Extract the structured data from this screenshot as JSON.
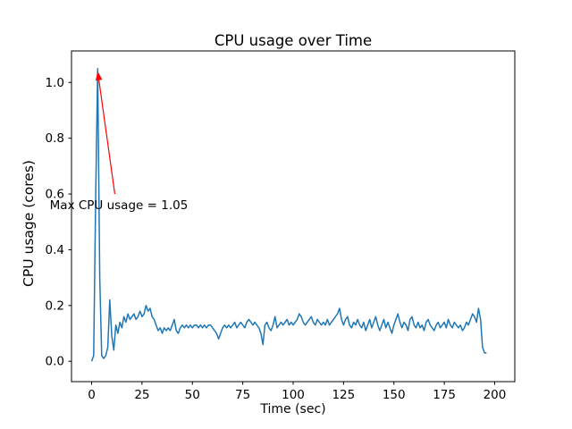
{
  "figure": {
    "background": "#ffffff",
    "title": "CPU usage over Time"
  },
  "chart_data": {
    "type": "line",
    "title": "CPU usage over Time",
    "xlabel": "Time (sec)",
    "ylabel": "CPU usage (cores)",
    "grid": false,
    "legend": null,
    "xlim": [
      -10,
      210
    ],
    "ylim": [
      -0.073,
      1.113
    ],
    "x_ticks": [
      0,
      25,
      50,
      75,
      100,
      125,
      150,
      175,
      200
    ],
    "y_ticks": [
      0.0,
      0.2,
      0.4,
      0.6,
      0.8,
      1.0
    ],
    "line_color": "#1f77b4",
    "line_width": 1.5,
    "series": [
      {
        "name": "CPU usage",
        "x_start": 0,
        "x_step": 1,
        "values": [
          0.0,
          0.02,
          0.6,
          1.05,
          0.3,
          0.02,
          0.01,
          0.02,
          0.05,
          0.22,
          0.09,
          0.04,
          0.13,
          0.1,
          0.14,
          0.12,
          0.16,
          0.14,
          0.17,
          0.15,
          0.16,
          0.17,
          0.15,
          0.16,
          0.18,
          0.16,
          0.17,
          0.2,
          0.18,
          0.19,
          0.16,
          0.15,
          0.13,
          0.11,
          0.12,
          0.1,
          0.12,
          0.11,
          0.12,
          0.11,
          0.13,
          0.15,
          0.11,
          0.1,
          0.12,
          0.13,
          0.12,
          0.13,
          0.12,
          0.13,
          0.12,
          0.13,
          0.13,
          0.12,
          0.13,
          0.12,
          0.13,
          0.12,
          0.13,
          0.13,
          0.12,
          0.11,
          0.1,
          0.08,
          0.1,
          0.12,
          0.13,
          0.12,
          0.13,
          0.12,
          0.13,
          0.14,
          0.12,
          0.13,
          0.14,
          0.13,
          0.12,
          0.14,
          0.15,
          0.14,
          0.13,
          0.14,
          0.13,
          0.12,
          0.1,
          0.06,
          0.13,
          0.14,
          0.12,
          0.11,
          0.13,
          0.16,
          0.12,
          0.13,
          0.14,
          0.13,
          0.14,
          0.15,
          0.13,
          0.14,
          0.13,
          0.14,
          0.15,
          0.17,
          0.16,
          0.14,
          0.13,
          0.14,
          0.15,
          0.16,
          0.14,
          0.13,
          0.15,
          0.14,
          0.13,
          0.14,
          0.13,
          0.15,
          0.13,
          0.14,
          0.15,
          0.16,
          0.17,
          0.19,
          0.15,
          0.13,
          0.15,
          0.16,
          0.13,
          0.12,
          0.14,
          0.13,
          0.15,
          0.13,
          0.12,
          0.14,
          0.11,
          0.13,
          0.15,
          0.12,
          0.14,
          0.16,
          0.13,
          0.11,
          0.13,
          0.15,
          0.12,
          0.14,
          0.12,
          0.1,
          0.13,
          0.15,
          0.17,
          0.14,
          0.12,
          0.14,
          0.13,
          0.11,
          0.15,
          0.16,
          0.13,
          0.12,
          0.14,
          0.12,
          0.13,
          0.11,
          0.14,
          0.15,
          0.13,
          0.12,
          0.11,
          0.13,
          0.14,
          0.12,
          0.13,
          0.14,
          0.12,
          0.15,
          0.13,
          0.12,
          0.14,
          0.13,
          0.12,
          0.13,
          0.11,
          0.12,
          0.14,
          0.13,
          0.15,
          0.17,
          0.16,
          0.14,
          0.19,
          0.15,
          0.05,
          0.03,
          0.03
        ]
      }
    ],
    "annotation": {
      "text": "Max CPU usage = 1.05",
      "color": "#ff0000",
      "arrow_tip_xy": [
        3,
        1.04
      ],
      "arrow_tail_xy": [
        11.5,
        0.6
      ],
      "text_xy": [
        13.5,
        0.545
      ]
    }
  }
}
